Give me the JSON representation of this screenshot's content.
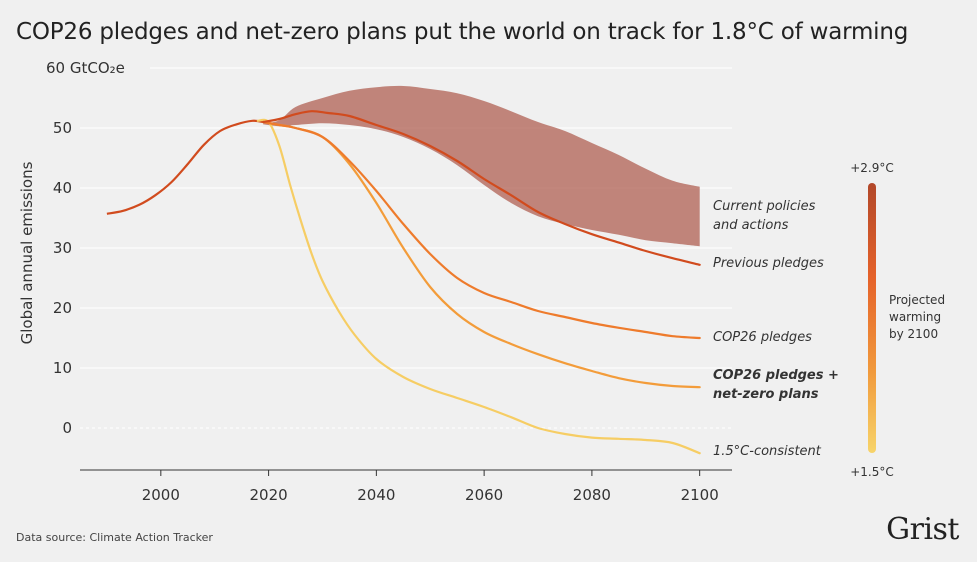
{
  "title": "COP26 pledges and net-zero plans put the world on track for 1.8°C of warming",
  "source": "Data source: Climate Action Tracker",
  "brand": "Grist",
  "colors": {
    "background": "#f0f0f0",
    "current_policies_band": "#b4695d",
    "previous_pledges": "#d14b1e",
    "cop26_pledges": "#ee7b2c",
    "cop26_netzero": "#f39c3a",
    "one_point_five": "#f6cd64",
    "axis": "#333333",
    "grid": "#ffffff"
  },
  "chart_data": {
    "type": "line",
    "title": "COP26 pledges and net-zero plans put the world on track for 1.8°C of warming",
    "xlabel": "",
    "ylabel": "Global annual emissions",
    "y_unit_label": "60 GtCO₂e",
    "xlim": [
      1985,
      2106
    ],
    "ylim": [
      -7,
      62
    ],
    "x_ticks": [
      "2000",
      "2020",
      "2040",
      "2060",
      "2080",
      "2100"
    ],
    "y_ticks": [
      "0",
      "10",
      "20",
      "30",
      "40",
      "50"
    ],
    "grid": true,
    "historical": {
      "x": [
        1990,
        1993,
        1996,
        1999,
        2002,
        2005,
        2008,
        2011,
        2014,
        2017,
        2019
      ],
      "values": [
        35.7,
        36.2,
        37.2,
        38.8,
        41.0,
        44.0,
        47.2,
        49.5,
        50.6,
        51.2,
        51.0
      ]
    },
    "band": {
      "name": "Current policies and actions",
      "x": [
        2019,
        2022,
        2025,
        2030,
        2035,
        2040,
        2045,
        2050,
        2055,
        2060,
        2065,
        2070,
        2075,
        2080,
        2085,
        2090,
        2095,
        2100
      ],
      "upper": [
        50.8,
        51.3,
        53.5,
        55.0,
        56.2,
        56.8,
        57.0,
        56.5,
        55.8,
        54.5,
        52.8,
        51.0,
        49.5,
        47.5,
        45.5,
        43.2,
        41.2,
        40.2
      ],
      "lower": [
        50.6,
        50.3,
        50.5,
        50.8,
        50.5,
        49.8,
        48.5,
        46.5,
        43.8,
        40.5,
        37.5,
        35.3,
        34.0,
        33.0,
        32.2,
        31.3,
        30.8,
        30.3
      ]
    },
    "series": [
      {
        "name": "Previous pledges",
        "x": [
          2019,
          2022,
          2025,
          2028,
          2031,
          2035,
          2040,
          2045,
          2050,
          2055,
          2060,
          2065,
          2070,
          2075,
          2080,
          2085,
          2090,
          2095,
          2100
        ],
        "values": [
          51.0,
          51.5,
          52.3,
          52.8,
          52.5,
          52.0,
          50.5,
          49.0,
          47.0,
          44.5,
          41.5,
          38.8,
          36.0,
          34.0,
          32.3,
          30.9,
          29.5,
          28.3,
          27.2
        ]
      },
      {
        "name": "COP26 pledges",
        "x": [
          2019,
          2022,
          2025,
          2030,
          2035,
          2040,
          2045,
          2050,
          2055,
          2060,
          2065,
          2070,
          2075,
          2080,
          2085,
          2090,
          2095,
          2100
        ],
        "values": [
          51.0,
          50.5,
          50.0,
          48.5,
          44.5,
          39.5,
          34.0,
          29.0,
          25.0,
          22.5,
          21.0,
          19.5,
          18.5,
          17.5,
          16.7,
          16.0,
          15.3,
          15.0
        ]
      },
      {
        "name": "COP26 pledges + net-zero plans",
        "x": [
          2019,
          2022,
          2025,
          2030,
          2035,
          2040,
          2045,
          2050,
          2055,
          2060,
          2065,
          2070,
          2075,
          2080,
          2085,
          2090,
          2095,
          2100
        ],
        "values": [
          51.0,
          50.5,
          50.0,
          48.5,
          44.0,
          37.5,
          30.0,
          23.5,
          19.0,
          16.0,
          14.0,
          12.3,
          10.8,
          9.5,
          8.3,
          7.5,
          7.0,
          6.8
        ]
      },
      {
        "name": "1.5°C-consistent",
        "x": [
          2018,
          2020,
          2022,
          2024,
          2026,
          2028,
          2030,
          2033,
          2036,
          2040,
          2045,
          2050,
          2055,
          2060,
          2065,
          2070,
          2075,
          2080,
          2085,
          2090,
          2095,
          2100
        ],
        "values": [
          51.2,
          51.0,
          47.0,
          40.5,
          34.5,
          29.0,
          24.5,
          19.5,
          15.5,
          11.5,
          8.5,
          6.5,
          5.0,
          3.5,
          1.8,
          0.0,
          -1.0,
          -1.6,
          -1.8,
          -2.0,
          -2.5,
          -4.2
        ]
      }
    ],
    "legend": {
      "title": "Projected warming by 2100",
      "title_lines": [
        "Projected",
        "warming",
        "by 2100"
      ],
      "max_label": "+2.9°C",
      "min_label": "+1.5°C",
      "placement": "right"
    }
  }
}
